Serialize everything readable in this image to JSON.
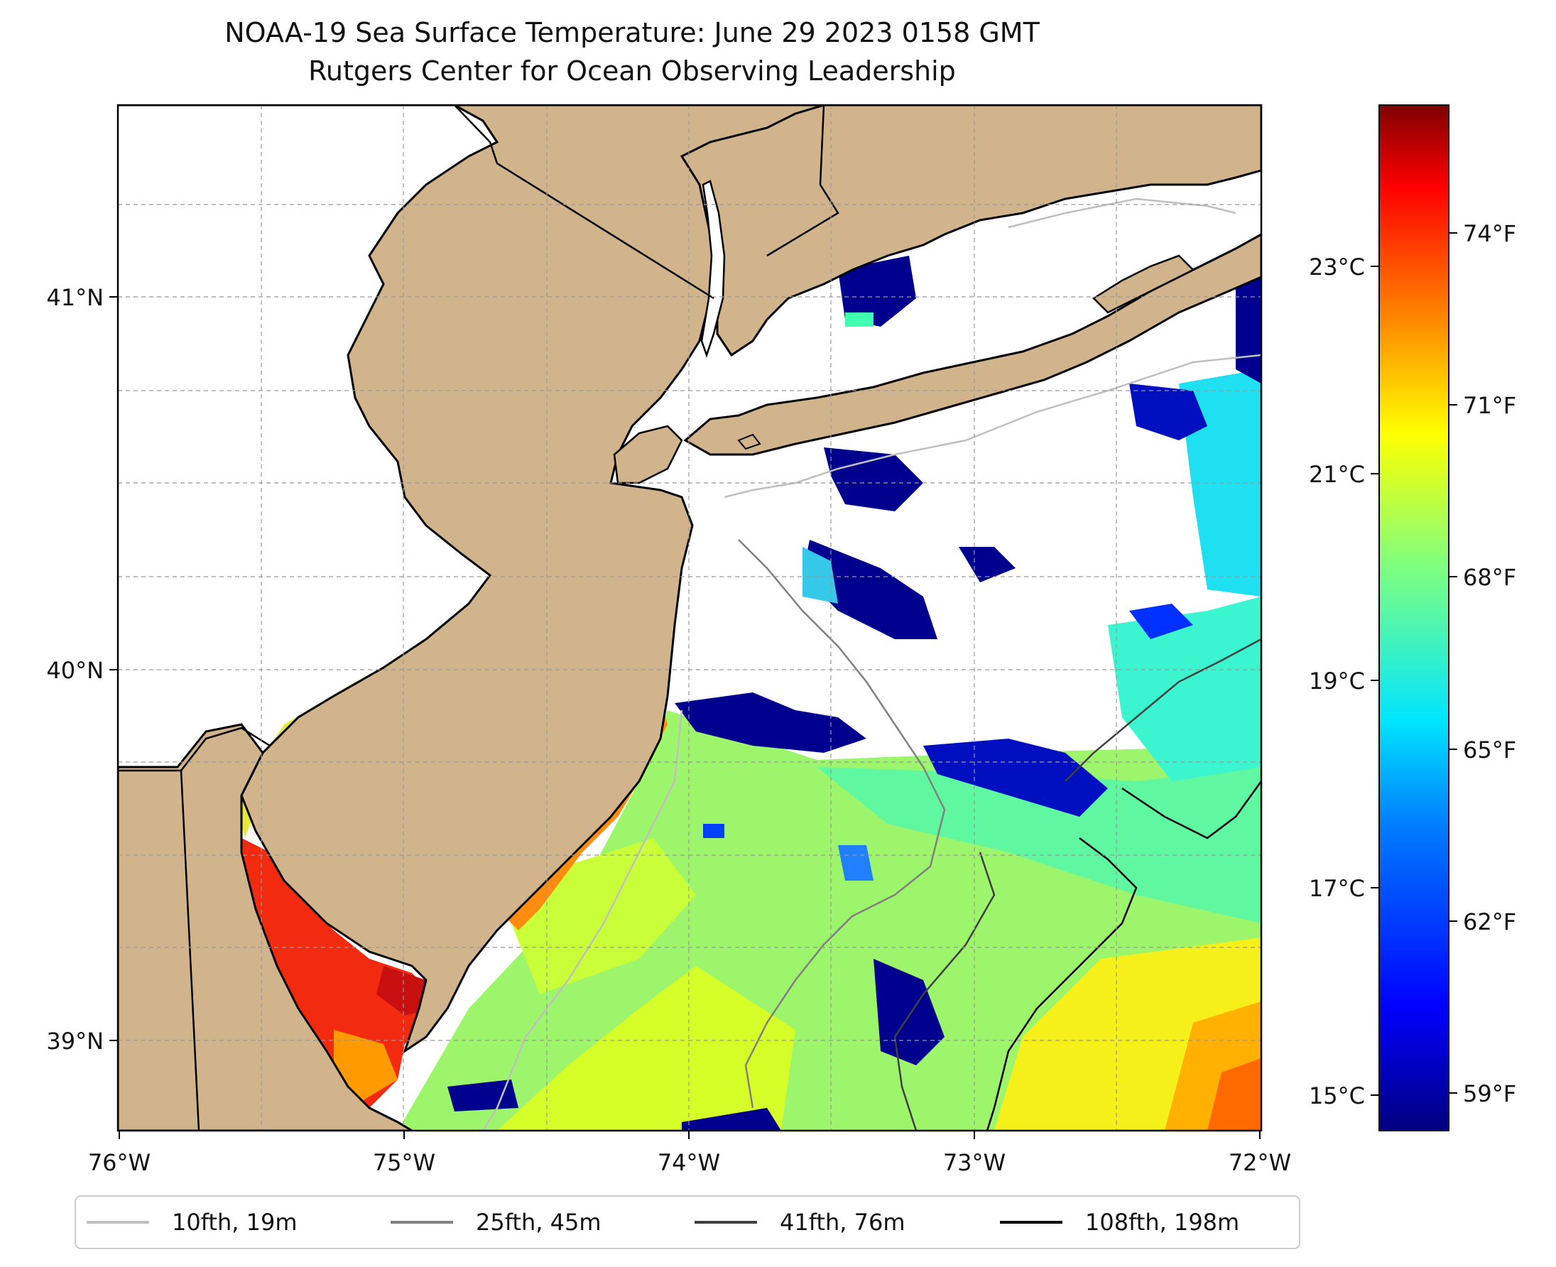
{
  "title": "NOAA-19 Sea Surface Temperature: June 29 2023 0158 GMT",
  "subtitle": "Rutgers Center for Ocean Observing Leadership",
  "colors": {
    "land": "#d2b48c",
    "coast": "#000000",
    "no_data": "#ffffff",
    "colormap": [
      "#00007f",
      "#0000ff",
      "#007fff",
      "#00ffff",
      "#7fff7f",
      "#ffff00",
      "#ff7f00",
      "#ff0000",
      "#7f0000"
    ]
  },
  "map": {
    "lon_labels": [
      "76°W",
      "75°W",
      "74°W",
      "73°W",
      "72°W"
    ],
    "lat_labels": [
      "41°N",
      "40°N",
      "39°N"
    ],
    "extent": {
      "lon": [
        -76,
        -72
      ],
      "lat": [
        38.75,
        41.5
      ]
    }
  },
  "colorbar": {
    "left_labels": [
      "23°C",
      "21°C",
      "19°C",
      "17°C",
      "15°C"
    ],
    "right_labels": [
      "74°F",
      "71°F",
      "68°F",
      "65°F",
      "62°F",
      "59°F"
    ],
    "range_f": [
      57.9,
      76.3
    ]
  },
  "legend": {
    "items": [
      {
        "label": "10fth, 19m",
        "color": "#bfbfbf"
      },
      {
        "label": "25fth, 45m",
        "color": "#808080"
      },
      {
        "label": "41fth, 76m",
        "color": "#404040"
      },
      {
        "label": "108fth, 198m",
        "color": "#000000"
      }
    ]
  }
}
